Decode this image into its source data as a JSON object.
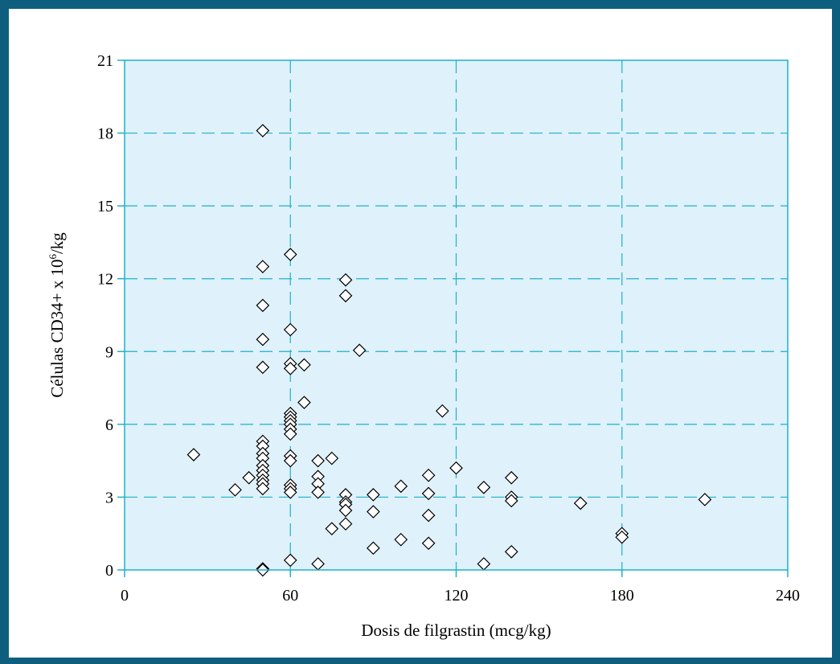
{
  "colors": {
    "frame": "#0e5f7f",
    "plot_background": "#dff1fa",
    "gridline": "#1fb0cc",
    "marker_stroke": "#000000",
    "marker_fill": "#ffffff"
  },
  "chart_data": {
    "type": "scatter",
    "title": "",
    "xlabel": "Dosis de filgrastin (mcg/kg)",
    "ylabel_main": "Células CD34+ x 10",
    "ylabel_sup": "6",
    "ylabel_tail": "/kg",
    "xlim": [
      0,
      240
    ],
    "ylim": [
      0,
      21
    ],
    "xticks": [
      0,
      60,
      120,
      180,
      240
    ],
    "yticks": [
      0,
      3,
      6,
      9,
      12,
      15,
      18,
      21
    ],
    "grid": true,
    "grid_style": "dashed",
    "marker": "diamond-open",
    "points": [
      [
        25,
        4.75
      ],
      [
        40,
        3.3
      ],
      [
        45,
        3.8
      ],
      [
        50,
        18.1
      ],
      [
        50,
        12.5
      ],
      [
        50,
        10.9
      ],
      [
        50,
        9.5
      ],
      [
        50,
        8.35
      ],
      [
        50,
        5.3
      ],
      [
        50,
        5.1
      ],
      [
        50,
        4.8
      ],
      [
        50,
        4.6
      ],
      [
        50,
        4.3
      ],
      [
        50,
        4.1
      ],
      [
        50,
        3.9
      ],
      [
        50,
        3.7
      ],
      [
        50,
        3.55
      ],
      [
        50,
        3.35
      ],
      [
        50,
        0.05
      ],
      [
        50,
        0.0
      ],
      [
        60,
        13.0
      ],
      [
        60,
        9.9
      ],
      [
        60,
        8.5
      ],
      [
        60,
        8.3
      ],
      [
        60,
        6.45
      ],
      [
        60,
        6.3
      ],
      [
        60,
        6.15
      ],
      [
        60,
        6.0
      ],
      [
        60,
        5.8
      ],
      [
        60,
        5.6
      ],
      [
        60,
        4.7
      ],
      [
        60,
        4.5
      ],
      [
        60,
        3.5
      ],
      [
        60,
        3.35
      ],
      [
        60,
        3.2
      ],
      [
        60,
        0.4
      ],
      [
        65,
        8.45
      ],
      [
        65,
        6.9
      ],
      [
        70,
        4.5
      ],
      [
        70,
        3.85
      ],
      [
        70,
        3.55
      ],
      [
        70,
        3.2
      ],
      [
        70,
        0.25
      ],
      [
        75,
        4.6
      ],
      [
        75,
        1.7
      ],
      [
        80,
        11.95
      ],
      [
        80,
        11.3
      ],
      [
        80,
        3.1
      ],
      [
        80,
        2.8
      ],
      [
        80,
        2.7
      ],
      [
        80,
        2.45
      ],
      [
        80,
        1.9
      ],
      [
        85,
        9.05
      ],
      [
        90,
        3.1
      ],
      [
        90,
        2.4
      ],
      [
        90,
        0.9
      ],
      [
        100,
        3.45
      ],
      [
        100,
        1.25
      ],
      [
        110,
        3.9
      ],
      [
        110,
        3.15
      ],
      [
        110,
        2.25
      ],
      [
        110,
        1.1
      ],
      [
        115,
        6.55
      ],
      [
        120,
        4.2
      ],
      [
        130,
        3.4
      ],
      [
        130,
        0.25
      ],
      [
        140,
        3.8
      ],
      [
        140,
        3.0
      ],
      [
        140,
        2.85
      ],
      [
        140,
        0.75
      ],
      [
        165,
        2.75
      ],
      [
        180,
        1.5
      ],
      [
        180,
        1.35
      ],
      [
        210,
        2.9
      ]
    ]
  }
}
